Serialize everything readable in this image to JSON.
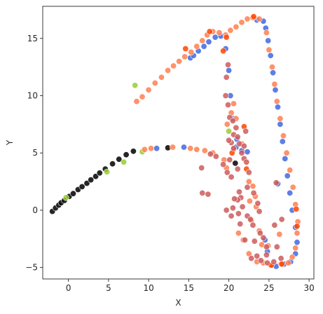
{
  "chart_data": {
    "type": "scatter",
    "title": "",
    "xlabel": "X",
    "ylabel": "Y",
    "xlim": [
      -3.2,
      30.6
    ],
    "ylim": [
      -6.0,
      17.8
    ],
    "xticks": [
      0,
      5,
      10,
      15,
      20,
      25,
      30
    ],
    "yticks": [
      -5,
      0,
      5,
      10,
      15
    ],
    "grid": false,
    "legend": "none",
    "series": [
      {
        "color": "#000000",
        "points": [
          [
            -2.0,
            -0.1
          ],
          [
            -1.6,
            0.2
          ],
          [
            -1.2,
            0.45
          ],
          [
            -0.9,
            0.65
          ],
          [
            -0.5,
            0.85
          ],
          [
            0.1,
            1.2
          ],
          [
            0.6,
            1.45
          ],
          [
            1.2,
            1.8
          ],
          [
            1.7,
            2.05
          ],
          [
            2.3,
            2.35
          ],
          [
            2.8,
            2.65
          ],
          [
            3.4,
            2.95
          ],
          [
            3.9,
            3.25
          ],
          [
            4.6,
            3.6
          ],
          [
            5.5,
            4.05
          ],
          [
            6.3,
            4.45
          ],
          [
            7.2,
            4.85
          ],
          [
            8.1,
            5.15
          ],
          [
            12.4,
            5.45
          ],
          [
            20.8,
            4.1
          ]
        ]
      },
      {
        "color": "#9acd32",
        "points": [
          [
            8.3,
            10.9
          ],
          [
            -0.3,
            1.1
          ],
          [
            4.8,
            3.35
          ],
          [
            6.9,
            4.2
          ],
          [
            9.2,
            5.1
          ],
          [
            20.0,
            6.9
          ]
        ]
      },
      {
        "color": "#4169e1",
        "points": [
          [
            15.2,
            13.3
          ],
          [
            15.6,
            13.5
          ],
          [
            16.2,
            13.9
          ],
          [
            16.9,
            14.3
          ],
          [
            17.5,
            14.7
          ],
          [
            18.3,
            15.1
          ],
          [
            19.0,
            15.2
          ],
          [
            19.6,
            14.1
          ],
          [
            20.0,
            12.2
          ],
          [
            20.2,
            10.0
          ],
          [
            20.5,
            8.0
          ],
          [
            21.0,
            6.2
          ],
          [
            20.9,
            5.5
          ],
          [
            21.6,
            5.2
          ],
          [
            23.5,
            16.6
          ],
          [
            24.3,
            16.5
          ],
          [
            24.6,
            15.9
          ],
          [
            24.9,
            14.8
          ],
          [
            25.2,
            13.5
          ],
          [
            25.5,
            12.0
          ],
          [
            25.8,
            10.5
          ],
          [
            26.1,
            9.0
          ],
          [
            26.4,
            7.5
          ],
          [
            26.7,
            6.0
          ],
          [
            27.0,
            4.5
          ],
          [
            27.3,
            3.0
          ],
          [
            27.6,
            1.5
          ],
          [
            27.9,
            0.0
          ],
          [
            28.3,
            -1.5
          ],
          [
            28.5,
            -2.8
          ],
          [
            28.3,
            -3.8
          ],
          [
            27.7,
            -4.5
          ],
          [
            26.9,
            -4.7
          ],
          [
            25.9,
            -4.9
          ],
          [
            24.5,
            -2.6
          ],
          [
            24.8,
            -3.6
          ],
          [
            11.0,
            5.4
          ],
          [
            14.4,
            5.5
          ],
          [
            22.3,
            5.1
          ],
          [
            26.1,
            2.3
          ]
        ]
      },
      {
        "color": "#ff7f50",
        "points": [
          [
            8.5,
            9.5
          ],
          [
            9.2,
            9.9
          ],
          [
            10.0,
            10.5
          ],
          [
            10.8,
            11.1
          ],
          [
            11.6,
            11.6
          ],
          [
            12.4,
            12.2
          ],
          [
            13.1,
            12.6
          ],
          [
            13.8,
            13.0
          ],
          [
            14.5,
            13.4
          ],
          [
            15.3,
            13.8
          ],
          [
            16.0,
            14.3
          ],
          [
            16.7,
            14.8
          ],
          [
            17.3,
            15.3
          ],
          [
            18.0,
            15.6
          ],
          [
            18.8,
            15.5
          ],
          [
            19.6,
            15.3
          ],
          [
            20.2,
            15.7
          ],
          [
            20.9,
            16.0
          ],
          [
            21.6,
            16.4
          ],
          [
            22.3,
            16.7
          ],
          [
            23.0,
            16.8
          ],
          [
            23.8,
            16.7
          ],
          [
            24.7,
            15.5
          ],
          [
            25.0,
            14.0
          ],
          [
            25.4,
            12.5
          ],
          [
            25.7,
            11.0
          ],
          [
            26.0,
            9.5
          ],
          [
            26.4,
            8.0
          ],
          [
            26.8,
            6.5
          ],
          [
            27.2,
            5.0
          ],
          [
            27.6,
            3.5
          ],
          [
            28.0,
            2.0
          ],
          [
            28.3,
            0.5
          ],
          [
            28.6,
            -1.0
          ],
          [
            28.5,
            -2.0
          ],
          [
            28.3,
            -3.3
          ],
          [
            27.9,
            -4.1
          ],
          [
            27.4,
            -4.6
          ],
          [
            26.5,
            -4.7
          ],
          [
            25.2,
            -4.8
          ],
          [
            24.3,
            -4.6
          ],
          [
            23.5,
            -4.5
          ],
          [
            22.5,
            -3.8
          ],
          [
            21.8,
            -2.6
          ],
          [
            21.2,
            -2.0
          ],
          [
            24.1,
            -3.0
          ],
          [
            9.5,
            5.3
          ],
          [
            10.3,
            5.4
          ],
          [
            13.0,
            5.5
          ],
          [
            15.2,
            5.4
          ],
          [
            16.0,
            5.3
          ],
          [
            17.0,
            5.2
          ],
          [
            18.0,
            5.0
          ],
          [
            19.4,
            4.4
          ],
          [
            19.7,
            3.7
          ],
          [
            20.6,
            5.3
          ],
          [
            21.6,
            5.8
          ],
          [
            22.5,
            2.5
          ],
          [
            23.0,
            2.1
          ],
          [
            23.3,
            1.2
          ],
          [
            23.4,
            0.3
          ],
          [
            22.8,
            -0.9
          ],
          [
            23.8,
            -1.8
          ],
          [
            24.9,
            -3.1
          ],
          [
            26.3,
            -2.1
          ],
          [
            22.6,
            0.8
          ],
          [
            19.8,
            7.5
          ],
          [
            20.3,
            8.5
          ],
          [
            20.6,
            9.3
          ],
          [
            20.9,
            8.0
          ]
        ]
      },
      {
        "color": "#ff4500",
        "points": [
          [
            14.6,
            14.1
          ],
          [
            17.6,
            15.6
          ],
          [
            19.7,
            15.1
          ],
          [
            23.1,
            16.9
          ],
          [
            21.9,
            7.3
          ],
          [
            20.4,
            5.0
          ],
          [
            22.2,
            3.6
          ],
          [
            26.6,
            -4.7
          ],
          [
            28.4,
            0.1
          ],
          [
            28.5,
            -1.4
          ],
          [
            25.3,
            -4.8
          ],
          [
            19.3,
            13.9
          ]
        ]
      },
      {
        "color": "#cd5c5c",
        "points": [
          [
            17.7,
            4.9
          ],
          [
            18.4,
            4.7
          ],
          [
            19.3,
            4.0
          ],
          [
            19.8,
            3.3
          ],
          [
            20.1,
            4.4
          ],
          [
            20.3,
            5.9
          ],
          [
            20.6,
            6.6
          ],
          [
            20.9,
            7.2
          ],
          [
            21.1,
            6.4
          ],
          [
            21.3,
            5.8
          ],
          [
            21.6,
            5.0
          ],
          [
            21.9,
            4.5
          ],
          [
            22.2,
            4.2
          ],
          [
            22.5,
            3.3
          ],
          [
            22.3,
            2.0
          ],
          [
            23.1,
            1.5
          ],
          [
            23.6,
            0.6
          ],
          [
            23.8,
            -0.1
          ],
          [
            21.3,
            1.6
          ],
          [
            21.5,
            1.1
          ],
          [
            21.7,
            0.3
          ],
          [
            22.3,
            -0.5
          ],
          [
            22.7,
            -0.8
          ],
          [
            23.0,
            -1.3
          ],
          [
            23.9,
            -2.0
          ],
          [
            24.3,
            -2.4
          ],
          [
            24.7,
            -3.2
          ],
          [
            23.5,
            -4.0
          ],
          [
            24.0,
            -4.4
          ],
          [
            24.8,
            -4.6
          ],
          [
            25.6,
            -4.5
          ],
          [
            26.5,
            -4.2
          ],
          [
            26.0,
            -3.2
          ],
          [
            21.1,
            0.9
          ],
          [
            20.7,
            1.0
          ],
          [
            20.3,
            2.9
          ],
          [
            21.9,
            5.6
          ],
          [
            22.1,
            6.9
          ],
          [
            20.0,
            6.1
          ],
          [
            19.9,
            12.7
          ],
          [
            19.7,
            11.6
          ],
          [
            19.6,
            10.0
          ],
          [
            19.9,
            9.2
          ],
          [
            20.1,
            8.1
          ],
          [
            20.5,
            7.8
          ],
          [
            20.6,
            5.4
          ],
          [
            21.1,
            3.6
          ],
          [
            16.7,
            1.5
          ],
          [
            17.4,
            1.4
          ],
          [
            16.6,
            3.7
          ],
          [
            22.0,
            -2.6
          ],
          [
            21.2,
            -0.3
          ],
          [
            20.5,
            0.2
          ],
          [
            19.7,
            0.0
          ],
          [
            20.3,
            -0.5
          ],
          [
            26.6,
            -0.8
          ],
          [
            21.4,
            -1.2
          ],
          [
            23.2,
            -2.7
          ],
          [
            25.7,
            -1.3
          ],
          [
            25.9,
            2.4
          ],
          [
            24.7,
            -3.9
          ],
          [
            22.8,
            -4.2
          ]
        ]
      }
    ]
  }
}
